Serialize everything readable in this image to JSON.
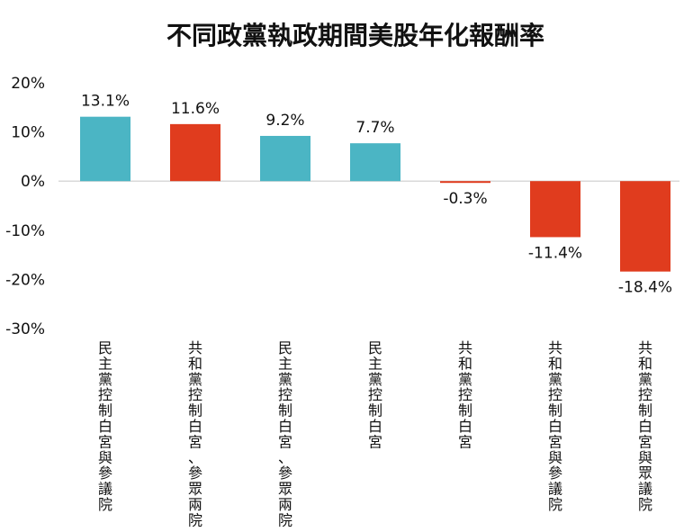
{
  "chart_data": {
    "type": "bar",
    "title": "不同政黨執政期間美股年化報酬率",
    "xlabel": "",
    "ylabel": "",
    "ylim": [
      -30,
      20
    ],
    "yticks": [
      20,
      10,
      0,
      -10,
      -20,
      -30
    ],
    "ytick_labels": [
      "20%",
      "10%",
      "0%",
      "-10%",
      "-20%",
      "-30%"
    ],
    "grid": false,
    "legend": "none",
    "categories": [
      "民主黨控制白宮與參議院",
      "共和黨控制白宮、參眾兩院",
      "民主黨控制白宮、參眾兩院",
      "民主黨控制白宮",
      "共和黨控制白宮",
      "共和黨控制白宮與參議院",
      "共和黨控制白宮與眾議院"
    ],
    "values": [
      13.1,
      11.6,
      9.2,
      7.7,
      -0.3,
      -11.4,
      -18.4
    ],
    "value_labels": [
      "13.1%",
      "11.6%",
      "9.2%",
      "7.7%",
      "-0.3%",
      "-11.4%",
      "-18.4%"
    ],
    "bar_colors": [
      "#4bb5c4",
      "#e03c1e",
      "#4bb5c4",
      "#4bb5c4",
      "#e03c1e",
      "#e03c1e",
      "#e03c1e"
    ],
    "colors": {
      "democrat": "#4bb5c4",
      "republican": "#e03c1e",
      "zero_line": "#d9d9d9"
    }
  }
}
